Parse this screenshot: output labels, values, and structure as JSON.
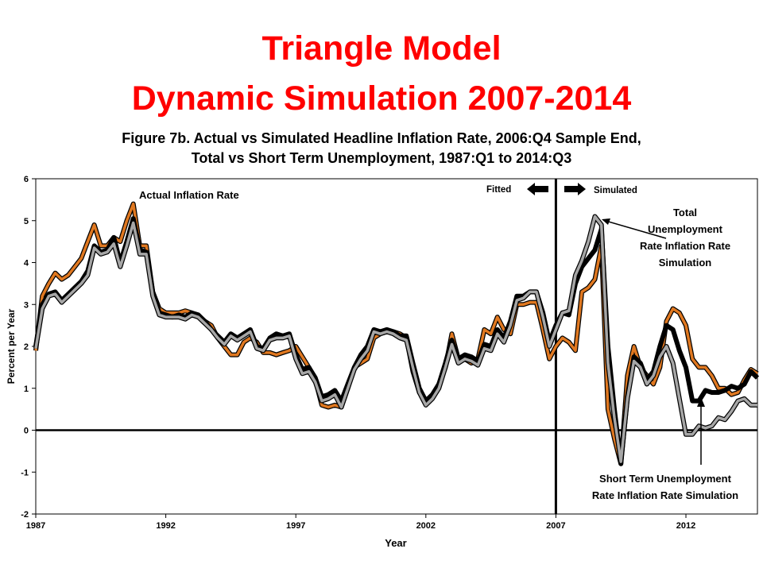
{
  "slide": {
    "title_line1": "Triangle Model",
    "title_line2": "Dynamic Simulation 2007-2014"
  },
  "chart_data": {
    "type": "line",
    "title": "Figure 7b. Actual vs Simulated Headline Inflation Rate, 2006:Q4 Sample End,",
    "subtitle": "Total vs Short Term Unemployment, 1987:Q1 to 2014:Q3",
    "xlabel": "Year",
    "ylabel": "Percent per Year",
    "xlim": [
      1987,
      2014.75
    ],
    "ylim": [
      -2,
      6
    ],
    "x_ticks": [
      "1987",
      "1992",
      "1997",
      "2002",
      "2007",
      "2012"
    ],
    "y_ticks": [
      "-2",
      "-1",
      "0",
      "1",
      "2",
      "3",
      "4",
      "5",
      "6"
    ],
    "grid": false,
    "zero_line": true,
    "sample_end_line_x": 2007,
    "colors": {
      "actual": "#e07820",
      "total_sim": "#000000",
      "short_term_sim": "#a6a6a6",
      "title": "#ff0000"
    },
    "annotations": {
      "actual": "Actual Inflation Rate",
      "fitted": "Fitted",
      "simulated": "Simulated",
      "total_lines": [
        "Total",
        "Unemployment",
        "Rate Inflation Rate",
        "Simulation"
      ],
      "short_lines": [
        "Short Term Unemployment",
        "Rate Inflation Rate Simulation"
      ]
    },
    "series": [
      {
        "key": "actual",
        "x": [
          1987.0,
          1987.25,
          1987.5,
          1987.75,
          1988.0,
          1988.25,
          1988.5,
          1988.75,
          1989.0,
          1989.25,
          1989.5,
          1989.75,
          1990.0,
          1990.25,
          1990.5,
          1990.75,
          1991.0,
          1991.25,
          1991.5,
          1991.75,
          1992.0,
          1992.25,
          1992.5,
          1992.75,
          1993.0,
          1993.25,
          1993.5,
          1993.75,
          1994.0,
          1994.25,
          1994.5,
          1994.75,
          1995.0,
          1995.25,
          1995.5,
          1995.75,
          1996.0,
          1996.25,
          1996.5,
          1996.75,
          1997.0,
          1997.25,
          1997.5,
          1997.75,
          1998.0,
          1998.25,
          1998.5,
          1998.75,
          1999.0,
          1999.25,
          1999.5,
          1999.75,
          2000.0,
          2000.25,
          2000.5,
          2000.75,
          2001.0,
          2001.25,
          2001.5,
          2001.75,
          2002.0,
          2002.25,
          2002.5,
          2002.75,
          2003.0,
          2003.25,
          2003.5,
          2003.75,
          2004.0,
          2004.25,
          2004.5,
          2004.75,
          2005.0,
          2005.25,
          2005.5,
          2005.75,
          2006.0,
          2006.25,
          2006.5,
          2006.75,
          2007.0,
          2007.25,
          2007.5,
          2007.75,
          2008.0,
          2008.25,
          2008.5,
          2008.75,
          2009.0,
          2009.25,
          2009.5,
          2009.75,
          2010.0,
          2010.25,
          2010.5,
          2010.75,
          2011.0,
          2011.25,
          2011.5,
          2011.75,
          2012.0,
          2012.25,
          2012.5,
          2012.75,
          2013.0,
          2013.25,
          2013.5,
          2013.75,
          2014.0,
          2014.25,
          2014.5,
          2014.75
        ],
        "y": [
          1.9,
          3.2,
          3.5,
          3.75,
          3.6,
          3.7,
          3.9,
          4.1,
          4.5,
          4.9,
          4.4,
          4.4,
          4.6,
          4.5,
          5.0,
          5.4,
          4.4,
          4.4,
          3.3,
          2.9,
          2.8,
          2.8,
          2.8,
          2.85,
          2.8,
          2.7,
          2.6,
          2.5,
          2.2,
          2.0,
          1.8,
          1.8,
          2.1,
          2.2,
          2.1,
          1.85,
          1.85,
          1.8,
          1.85,
          1.9,
          2.0,
          1.75,
          1.5,
          1.2,
          0.6,
          0.55,
          0.6,
          0.55,
          1.0,
          1.5,
          1.6,
          1.7,
          2.2,
          2.3,
          2.35,
          2.35,
          2.3,
          2.2,
          1.4,
          0.9,
          0.7,
          0.8,
          1.1,
          1.5,
          2.3,
          1.7,
          1.7,
          1.6,
          1.7,
          2.4,
          2.3,
          2.7,
          2.4,
          2.3,
          3.0,
          3.0,
          3.05,
          3.05,
          2.4,
          1.7,
          2.0,
          2.2,
          2.1,
          1.9,
          3.3,
          3.4,
          3.6,
          4.4,
          0.5,
          -0.2,
          -0.8,
          1.3,
          2.0,
          1.5,
          1.3,
          1.1,
          1.5,
          2.6,
          2.9,
          2.8,
          2.5,
          1.7,
          1.5,
          1.5,
          1.3,
          1.0,
          1.0,
          0.85,
          0.9,
          1.2,
          1.45,
          1.35
        ]
      },
      {
        "key": "total_sim",
        "x": [
          1987.0,
          1987.25,
          1987.5,
          1987.75,
          1988.0,
          1988.25,
          1988.5,
          1988.75,
          1989.0,
          1989.25,
          1989.5,
          1989.75,
          1990.0,
          1990.25,
          1990.5,
          1990.75,
          1991.0,
          1991.25,
          1991.5,
          1991.75,
          1992.0,
          1992.25,
          1992.5,
          1992.75,
          1993.0,
          1993.25,
          1993.5,
          1993.75,
          1994.0,
          1994.25,
          1994.5,
          1994.75,
          1995.0,
          1995.25,
          1995.5,
          1995.75,
          1996.0,
          1996.25,
          1996.5,
          1996.75,
          1997.0,
          1997.25,
          1997.5,
          1997.75,
          1998.0,
          1998.25,
          1998.5,
          1998.75,
          1999.0,
          1999.25,
          1999.5,
          1999.75,
          2000.0,
          2000.25,
          2000.5,
          2000.75,
          2001.0,
          2001.25,
          2001.5,
          2001.75,
          2002.0,
          2002.25,
          2002.5,
          2002.75,
          2003.0,
          2003.25,
          2003.5,
          2003.75,
          2004.0,
          2004.25,
          2004.5,
          2004.75,
          2005.0,
          2005.25,
          2005.5,
          2005.75,
          2006.0,
          2006.25,
          2006.5,
          2006.75,
          2007.0,
          2007.25,
          2007.5,
          2007.75,
          2008.0,
          2008.25,
          2008.5,
          2008.75,
          2009.0,
          2009.25,
          2009.5,
          2009.75,
          2010.0,
          2010.25,
          2010.5,
          2010.75,
          2011.0,
          2011.25,
          2011.5,
          2011.75,
          2012.0,
          2012.25,
          2012.5,
          2012.75,
          2013.0,
          2013.25,
          2013.5,
          2013.75,
          2014.0,
          2014.25,
          2014.5,
          2014.75
        ],
        "y": [
          2.0,
          3.0,
          3.25,
          3.3,
          3.1,
          3.25,
          3.4,
          3.55,
          3.8,
          4.4,
          4.25,
          4.3,
          4.6,
          4.0,
          4.5,
          5.05,
          4.3,
          4.25,
          3.3,
          2.8,
          2.75,
          2.7,
          2.75,
          2.7,
          2.8,
          2.75,
          2.6,
          2.4,
          2.25,
          2.1,
          2.3,
          2.2,
          2.3,
          2.4,
          2.0,
          1.95,
          2.2,
          2.3,
          2.25,
          2.3,
          1.8,
          1.45,
          1.5,
          1.25,
          0.8,
          0.85,
          0.95,
          0.7,
          1.1,
          1.5,
          1.8,
          2.0,
          2.4,
          2.35,
          2.4,
          2.35,
          2.25,
          2.25,
          1.6,
          1.0,
          0.7,
          0.85,
          1.1,
          1.6,
          2.15,
          1.7,
          1.8,
          1.75,
          1.65,
          2.05,
          2.0,
          2.4,
          2.2,
          2.6,
          3.2,
          3.2,
          3.3,
          3.3,
          2.8,
          2.1,
          2.5,
          2.8,
          2.75,
          3.5,
          3.9,
          4.1,
          4.3,
          4.8,
          2.0,
          0.5,
          -0.8,
          0.8,
          1.75,
          1.6,
          1.2,
          1.4,
          2.0,
          2.5,
          2.4,
          1.9,
          1.5,
          0.7,
          0.7,
          0.95,
          0.9,
          0.9,
          0.95,
          1.05,
          1.0,
          1.1,
          1.4,
          1.25
        ]
      },
      {
        "key": "short_term_sim",
        "x": [
          1987.0,
          1987.25,
          1987.5,
          1987.75,
          1988.0,
          1988.25,
          1988.5,
          1988.75,
          1989.0,
          1989.25,
          1989.5,
          1989.75,
          1990.0,
          1990.25,
          1990.5,
          1990.75,
          1991.0,
          1991.25,
          1991.5,
          1991.75,
          1992.0,
          1992.25,
          1992.5,
          1992.75,
          1993.0,
          1993.25,
          1993.5,
          1993.75,
          1994.0,
          1994.25,
          1994.5,
          1994.75,
          1995.0,
          1995.25,
          1995.5,
          1995.75,
          1996.0,
          1996.25,
          1996.5,
          1996.75,
          1997.0,
          1997.25,
          1997.5,
          1997.75,
          1998.0,
          1998.25,
          1998.5,
          1998.75,
          1999.0,
          1999.25,
          1999.5,
          1999.75,
          2000.0,
          2000.25,
          2000.5,
          2000.75,
          2001.0,
          2001.25,
          2001.5,
          2001.75,
          2002.0,
          2002.25,
          2002.5,
          2002.75,
          2003.0,
          2003.25,
          2003.5,
          2003.75,
          2004.0,
          2004.25,
          2004.5,
          2004.75,
          2005.0,
          2005.25,
          2005.5,
          2005.75,
          2006.0,
          2006.25,
          2006.5,
          2006.75,
          2007.0,
          2007.25,
          2007.5,
          2007.75,
          2008.0,
          2008.25,
          2008.5,
          2008.75,
          2009.0,
          2009.25,
          2009.5,
          2009.75,
          2010.0,
          2010.25,
          2010.5,
          2010.75,
          2011.0,
          2011.25,
          2011.5,
          2011.75,
          2012.0,
          2012.25,
          2012.5,
          2012.75,
          2013.0,
          2013.25,
          2013.5,
          2013.75,
          2014.0,
          2014.25,
          2014.5,
          2014.75
        ],
        "y": [
          1.95,
          2.9,
          3.2,
          3.25,
          3.05,
          3.2,
          3.35,
          3.5,
          3.7,
          4.35,
          4.2,
          4.25,
          4.45,
          3.9,
          4.4,
          4.95,
          4.2,
          4.2,
          3.2,
          2.75,
          2.7,
          2.7,
          2.7,
          2.65,
          2.75,
          2.7,
          2.55,
          2.4,
          2.2,
          2.05,
          2.25,
          2.15,
          2.25,
          2.35,
          1.95,
          1.9,
          2.15,
          2.2,
          2.2,
          2.25,
          1.7,
          1.35,
          1.4,
          1.15,
          0.7,
          0.75,
          0.85,
          0.55,
          1.0,
          1.45,
          1.7,
          1.9,
          2.35,
          2.3,
          2.35,
          2.3,
          2.2,
          2.15,
          1.5,
          0.9,
          0.6,
          0.75,
          1.0,
          1.5,
          2.05,
          1.6,
          1.7,
          1.65,
          1.55,
          1.95,
          1.9,
          2.3,
          2.1,
          2.5,
          3.1,
          3.15,
          3.3,
          3.3,
          2.7,
          2.0,
          2.4,
          2.8,
          2.85,
          3.7,
          4.05,
          4.5,
          5.1,
          4.9,
          1.6,
          0.3,
          -0.75,
          0.75,
          1.65,
          1.5,
          1.1,
          1.3,
          1.75,
          2.0,
          1.6,
          0.75,
          -0.1,
          -0.1,
          0.1,
          0.05,
          0.1,
          0.3,
          0.25,
          0.45,
          0.7,
          0.75,
          0.6,
          0.6
        ]
      }
    ]
  }
}
